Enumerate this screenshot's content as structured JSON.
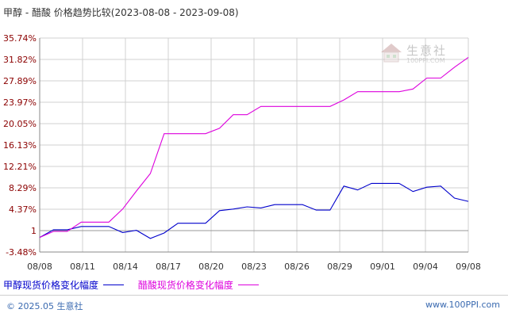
{
  "title": "甲醇 - 醋酸 价格趋势比较(2023-08-08 - 2023-09-08)",
  "watermark": {
    "text": "生意社",
    "url": "100PPI.COM"
  },
  "footer": {
    "left": "© 2025.05 生意社",
    "right": "www.100PPI.com"
  },
  "colors": {
    "series1": "#0000cc",
    "series2": "#dd00dd",
    "grid": "#d0d0d0",
    "axis": "#888888",
    "baseline": "#999999"
  },
  "chart_data": {
    "type": "line",
    "title": "甲醇 - 醋酸 价格趋势比较(2023-08-08 - 2023-09-08)",
    "xlabel": "",
    "ylabel": "",
    "x_tick_labels": [
      "08/08",
      "08/11",
      "08/14",
      "08/17",
      "08/20",
      "08/23",
      "08/26",
      "08/29",
      "09/01",
      "09/04",
      "09/08"
    ],
    "y_tick_labels": [
      "35.74%",
      "31.82%",
      "27.89%",
      "23.97%",
      "20.05%",
      "16.13%",
      "12.21%",
      "8.29%",
      "4.37%",
      "1",
      "-3.48%"
    ],
    "ylim": [
      -3.48,
      35.74
    ],
    "grid": true,
    "legend_position": "bottom",
    "x": [
      "08/08",
      "08/09",
      "08/10",
      "08/11",
      "08/12",
      "08/13",
      "08/14",
      "08/15",
      "08/16",
      "08/17",
      "08/18",
      "08/19",
      "08/20",
      "08/21",
      "08/22",
      "08/23",
      "08/24",
      "08/25",
      "08/26",
      "08/27",
      "08/28",
      "08/29",
      "08/30",
      "08/31",
      "09/01",
      "09/02",
      "09/03",
      "09/04",
      "09/05",
      "09/06",
      "09/07",
      "09/08"
    ],
    "series": [
      {
        "name": "甲醇现货价格变化幅度",
        "values": [
          -0.8,
          0.6,
          0.6,
          1.2,
          1.2,
          1.2,
          0.1,
          0.5,
          -1.0,
          0.0,
          1.8,
          1.8,
          1.8,
          4.1,
          4.4,
          4.8,
          4.6,
          5.2,
          5.2,
          5.2,
          4.2,
          4.2,
          8.6,
          7.9,
          9.1,
          9.1,
          9.1,
          7.6,
          8.4,
          8.6,
          6.4,
          5.8
        ]
      },
      {
        "name": "醋酸现货价格变化幅度",
        "values": [
          -0.8,
          0.3,
          0.3,
          2.0,
          2.0,
          2.0,
          4.4,
          7.7,
          10.9,
          18.2,
          18.2,
          18.2,
          18.2,
          19.2,
          21.7,
          21.7,
          23.2,
          23.2,
          23.2,
          23.2,
          23.2,
          23.2,
          24.4,
          25.9,
          25.9,
          25.9,
          25.9,
          26.4,
          28.4,
          28.4,
          30.4,
          32.2
        ]
      }
    ]
  }
}
